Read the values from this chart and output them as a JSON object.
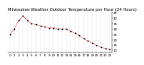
{
  "title": "Milwaukee Weather Outdoor Temperature per Hour (24 Hours)",
  "hours": [
    0,
    1,
    2,
    3,
    4,
    5,
    6,
    7,
    8,
    9,
    10,
    11,
    12,
    13,
    14,
    15,
    16,
    17,
    18,
    19,
    20,
    21,
    22,
    23
  ],
  "temps": [
    25,
    30,
    38,
    42,
    38,
    35,
    34,
    33,
    32,
    31,
    31,
    30,
    30,
    30,
    28,
    26,
    24,
    21,
    19,
    17,
    15,
    13,
    12,
    11
  ],
  "line_color": "#cc0000",
  "marker_color": "#000000",
  "bg_color": "#ffffff",
  "plot_bg": "#ffffff",
  "grid_color": "#999999",
  "ylim_min": 8,
  "ylim_max": 46,
  "ytick_values": [
    10,
    15,
    20,
    25,
    30,
    35,
    40,
    45
  ],
  "xtick_values": [
    0,
    1,
    2,
    3,
    4,
    5,
    6,
    7,
    8,
    9,
    10,
    11,
    12,
    13,
    14,
    15,
    16,
    17,
    18,
    19,
    20,
    21,
    22,
    23
  ],
  "title_fontsize": 3.8,
  "tick_fontsize": 3.0,
  "title_color": "#000000",
  "linewidth": 0.5,
  "markersize": 1.0
}
